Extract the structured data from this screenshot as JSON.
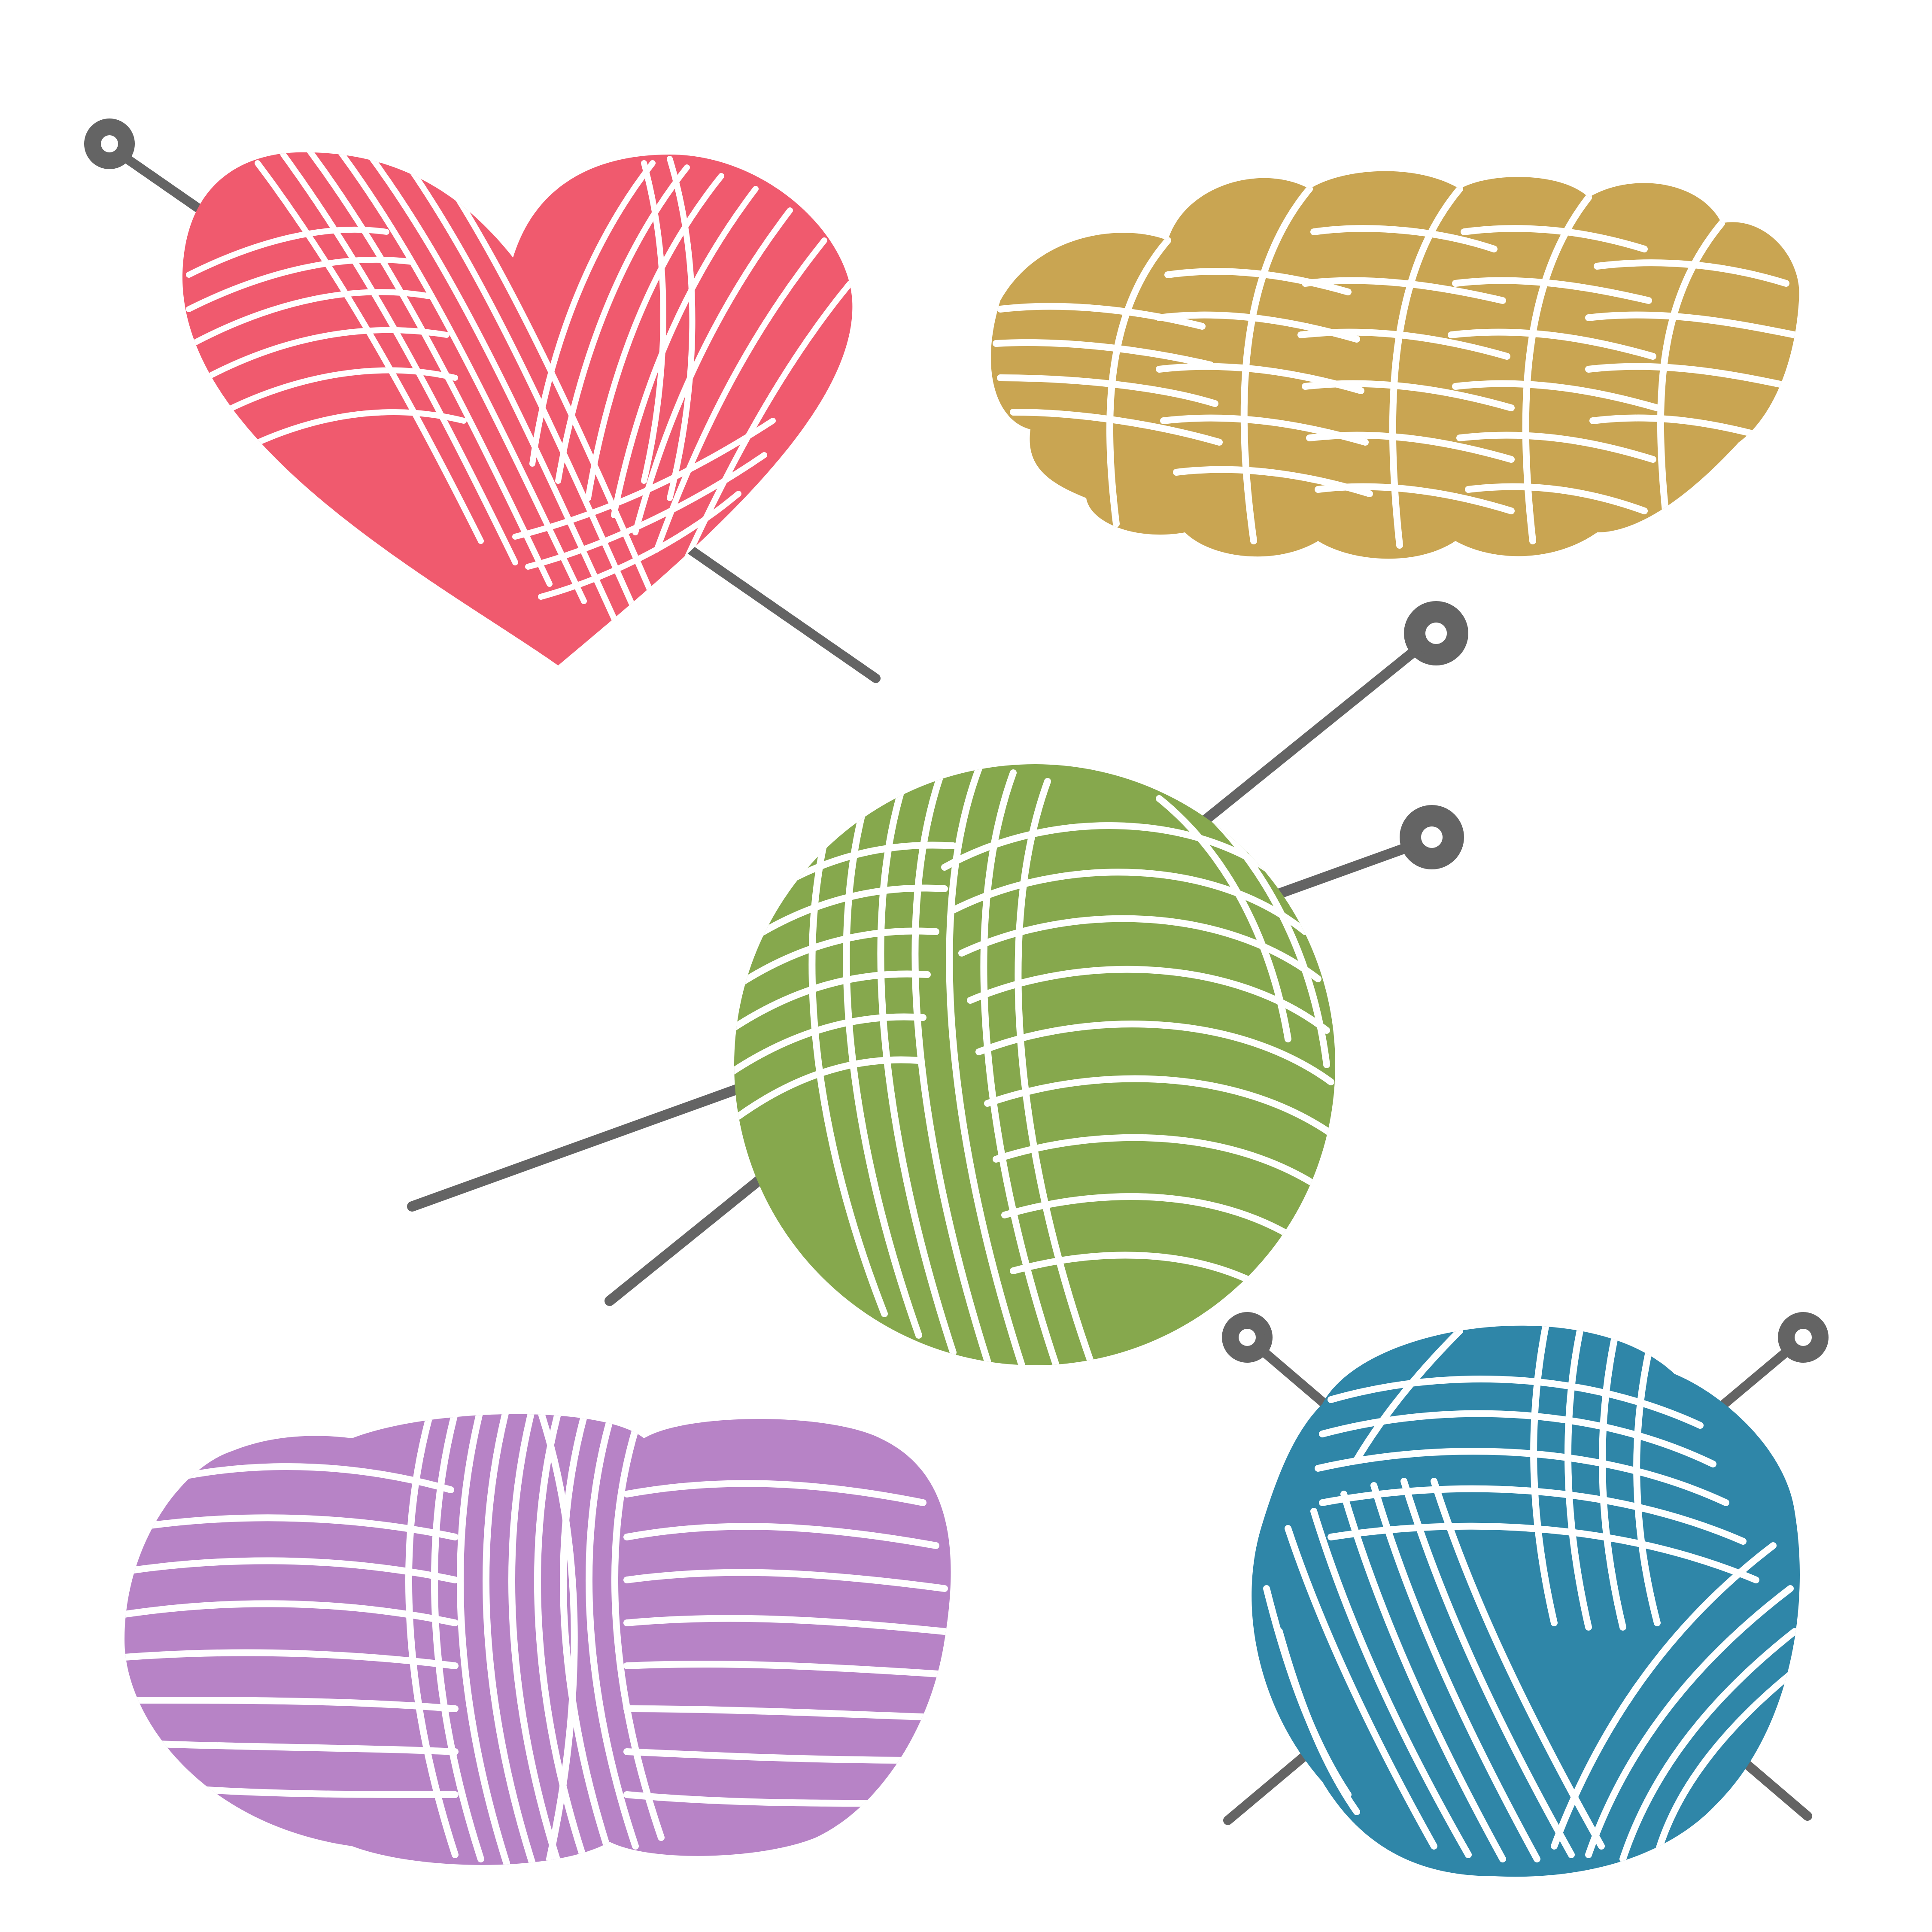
{
  "colors": {
    "background": "#ffffff",
    "heart": "#f05a6e",
    "skein": "#c9a552",
    "ball_green": "#86a84d",
    "ball_purple": "#b783c6",
    "ball_blue": "#2f86a8",
    "needle": "#646464",
    "needle_eye": "#ffffff"
  },
  "items": [
    {
      "name": "heart-yarn-ball-icon",
      "color_key": "heart",
      "needles": 1
    },
    {
      "name": "yarn-skein-icon",
      "color_key": "skein",
      "needles": 0
    },
    {
      "name": "yarn-ball-green-icon",
      "color_key": "ball_green",
      "needles": 2
    },
    {
      "name": "yarn-double-ball-purple-icon",
      "color_key": "ball_purple",
      "needles": 0
    },
    {
      "name": "yarn-ball-blue-icon",
      "color_key": "ball_blue",
      "needles": 2
    }
  ]
}
